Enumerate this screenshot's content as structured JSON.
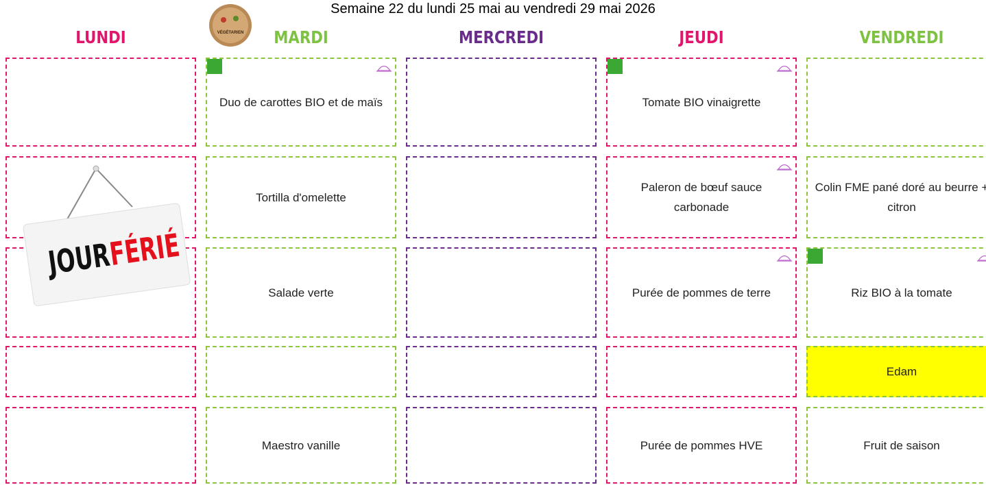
{
  "header": {
    "title": "Semaine 22 du lundi 25 mai au vendredi  29 mai 2026",
    "vegetarian_badge": "VÉGÉTARIEN"
  },
  "days": [
    {
      "name": "LUNDI",
      "cells": [
        null,
        null,
        null,
        null,
        null
      ]
    },
    {
      "name": "MARDI",
      "cells": [
        "Duo de carottes BIO et de maïs",
        "Tortilla d'omelette",
        "Salade verte",
        null,
        "Maestro vanille"
      ]
    },
    {
      "name": "MERCREDI",
      "cells": [
        null,
        null,
        null,
        null,
        null
      ]
    },
    {
      "name": "JEUDI",
      "cells": [
        "Tomate BIO vinaigrette",
        "Paleron de bœuf sauce carbonade",
        "Purée de pommes de terre",
        null,
        "Purée de pommes HVE"
      ]
    },
    {
      "name": "VENDREDI",
      "cells": [
        null,
        "Colin FME pané doré au beurre + citron",
        "Riz BIO à la tomate",
        "Edam",
        "Fruit de saison"
      ]
    }
  ],
  "jour_ferie": {
    "word1": "JOUR",
    "word2": "FÉRIÉ"
  }
}
